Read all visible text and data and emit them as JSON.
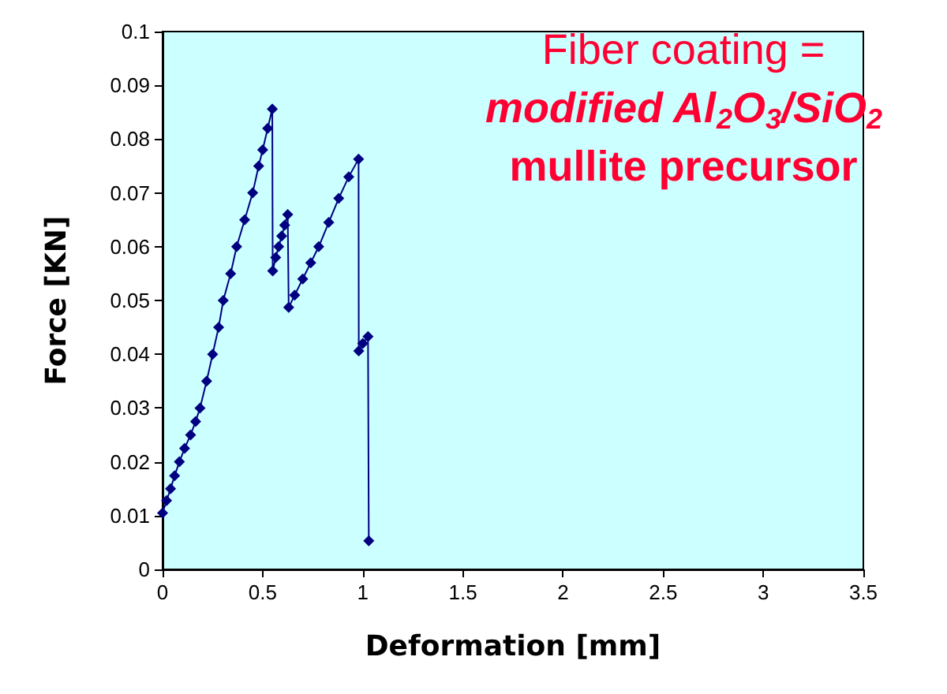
{
  "chart_data": {
    "type": "line",
    "xlabel": "Deformation [mm]",
    "ylabel": "Force [KN]",
    "annotations": [
      "Fiber coating =",
      "modified Al$_{2}$O$_{3}$/SiO$_{2}$",
      "mullite precursor"
    ],
    "series": [
      {
        "color": "#000080",
        "x": [
          0,
          0.02,
          0.04,
          0.06,
          0.084,
          0.11,
          0.14,
          0.165,
          0.187,
          0.22,
          0.25,
          0.28,
          0.303,
          0.34,
          0.37,
          0.41,
          0.45,
          0.48,
          0.5,
          0.525,
          0.548,
          0.55,
          0.565,
          0.58,
          0.595,
          0.61,
          0.625,
          0.63,
          0.66,
          0.7,
          0.74,
          0.78,
          0.83,
          0.88,
          0.93,
          0.979,
          0.98,
          1.0,
          1.026,
          1.03
        ],
        "values": [
          0.0105,
          0.0128,
          0.015,
          0.0174,
          0.02,
          0.0225,
          0.025,
          0.0275,
          0.03,
          0.035,
          0.04,
          0.045,
          0.05,
          0.055,
          0.06,
          0.065,
          0.07,
          0.075,
          0.078,
          0.082,
          0.0856,
          0.0555,
          0.058,
          0.06,
          0.062,
          0.064,
          0.066,
          0.0487,
          0.051,
          0.054,
          0.057,
          0.06,
          0.0645,
          0.069,
          0.073,
          0.0763,
          0.0406,
          0.042,
          0.0433,
          0.0053
        ]
      }
    ],
    "xlim": [
      0,
      3.5
    ],
    "xticks": [
      0,
      0.5,
      1,
      1.5,
      2,
      2.5,
      3,
      3.5
    ],
    "ylim": [
      0,
      0.1
    ],
    "yticks": [
      0,
      0.01,
      0.02,
      0.03,
      0.04,
      0.05,
      0.06,
      0.07,
      0.08,
      0.09,
      0.1
    ],
    "grid": false,
    "marker": "diamond",
    "line_style": "solid"
  }
}
